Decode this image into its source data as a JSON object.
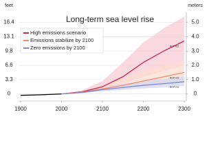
{
  "chart_data": {
    "type": "line",
    "title": "Long-term sea level rise",
    "ylabel": "feet",
    "y2label": "meters",
    "xlim": [
      1895,
      2305
    ],
    "xticks": [
      1900,
      2000,
      2100,
      2200,
      2300
    ],
    "ylim": [
      -0.5,
      5.7
    ],
    "yticks": [
      0,
      {
        "value": 1,
        "label": "3.3"
      },
      {
        "value": 2,
        "label": "6.6"
      },
      {
        "value": 3,
        "label": "9.8"
      },
      {
        "value": 4,
        "label": "13.1"
      },
      {
        "value": 5,
        "label": "16.4"
      }
    ],
    "y2lim": [
      -0.5,
      5.7
    ],
    "y2ticks": [
      0,
      {
        "value": 1,
        "label": "1.0"
      },
      {
        "value": 2,
        "label": "2.0"
      },
      {
        "value": 3,
        "label": "3.0"
      },
      {
        "value": 4,
        "label": "4.0"
      },
      {
        "value": 5,
        "label": "5.0"
      }
    ],
    "grid": true,
    "legend": "upper left",
    "series": [
      {
        "color": "#000000",
        "x": [
          1900,
          1950,
          2000
        ],
        "values": [
          -0.1,
          -0.06,
          0
        ]
      },
      {
        "name": "High emissions scenario",
        "end_label": "RCP 8.5",
        "color": "#c8284f",
        "band_color": "#f7cbd4",
        "x": [
          2000,
          2050,
          2100,
          2150,
          2200,
          2250,
          2300
        ],
        "values": [
          0,
          0.15,
          0.5,
          1.2,
          2.2,
          3.0,
          3.7
        ],
        "lower": [
          0,
          0.1,
          0.3,
          0.7,
          1.2,
          1.6,
          2.0
        ],
        "upper": [
          0,
          0.25,
          0.9,
          2.2,
          3.6,
          4.6,
          5.4
        ]
      },
      {
        "name": "Emissions stabilize by 2100",
        "end_label": "RCP 4.5",
        "color": "#f08c6a",
        "band_color": "#fbdccf",
        "x": [
          2000,
          2050,
          2100,
          2150,
          2200,
          2250,
          2300
        ],
        "values": [
          0,
          0.12,
          0.35,
          0.6,
          0.9,
          1.2,
          1.5
        ],
        "lower": [
          0,
          0.08,
          0.2,
          0.35,
          0.55,
          0.7,
          0.9
        ],
        "upper": [
          0,
          0.2,
          0.6,
          1.1,
          1.6,
          2.0,
          2.3
        ]
      },
      {
        "name": "Zero emissions by 2100",
        "end_label": "RCP 2.6",
        "color": "#7b86c8",
        "band_color": "#d3d7ef",
        "x": [
          2000,
          2050,
          2100,
          2150,
          2200,
          2250,
          2300
        ],
        "values": [
          0,
          0.1,
          0.3,
          0.45,
          0.6,
          0.72,
          0.85
        ],
        "lower": [
          0,
          0.06,
          0.18,
          0.28,
          0.38,
          0.45,
          0.55
        ],
        "upper": [
          0,
          0.15,
          0.45,
          0.7,
          0.9,
          1.05,
          1.2
        ]
      }
    ]
  }
}
